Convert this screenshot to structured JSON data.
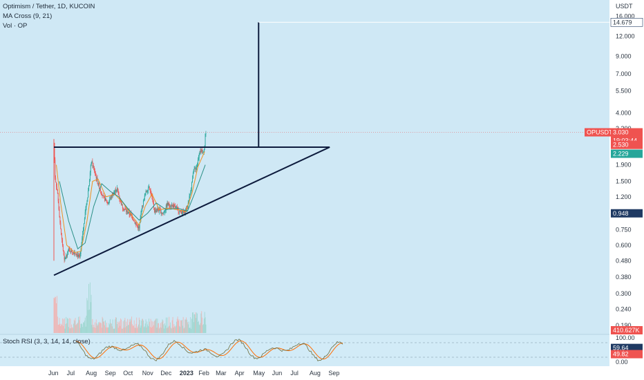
{
  "legend": {
    "title": "Optimism / Tether, 1D, KUCOIN",
    "ma": "MA Cross (9, 21)",
    "vol": "Vol · OP",
    "stoch": "Stoch RSI (3, 3, 14, 14, close)"
  },
  "colors": {
    "background": "#cfe8f5",
    "up": "#26a69a",
    "down": "#ef5350",
    "ma_fast": "#f0901e",
    "ma_slow": "#2a8f86",
    "trendline": "#0d1b3d",
    "stoch_k": "#2962ff",
    "stoch_d": "#ff6d00"
  },
  "badges": {
    "symbol": "OPUSDT",
    "price": "3.030",
    "countdown": "19:03:44",
    "level_2530": "2.530",
    "level_2229": "2.229",
    "level_0948": "0.948",
    "level_14679": "14.679",
    "volume": "410.627K",
    "stoch_k": "59.64",
    "stoch_d": "49.82"
  },
  "chart_data": [
    {
      "type": "candlestick",
      "title": "Optimism / Tether, 1D, KUCOIN",
      "yscale": "log",
      "ylabel": "USDT",
      "yticks": [
        "16.000",
        "12.000",
        "9.000",
        "7.000",
        "5.500",
        "4.000",
        "3.200",
        "2.530",
        "1.900",
        "1.500",
        "1.200",
        "0.948",
        "0.750",
        "0.600",
        "0.480",
        "0.380",
        "0.300",
        "0.240",
        "0.190"
      ],
      "yticks_values": [
        16,
        12,
        9,
        7,
        5.5,
        4,
        3.2,
        2.53,
        1.9,
        1.5,
        1.2,
        0.948,
        0.75,
        0.6,
        0.48,
        0.38,
        0.3,
        0.24,
        0.19
      ],
      "xticks": [
        "Jun",
        "Jul",
        "Aug",
        "Sep",
        "Oct",
        "Nov",
        "Dec",
        "2023",
        "Feb",
        "Mar",
        "Apr",
        "May",
        "Jun",
        "Jul",
        "Aug",
        "Sep"
      ],
      "price_path": [
        [
          "2022-06-01",
          2.6
        ],
        [
          "2022-06-03",
          1.6
        ],
        [
          "2022-06-07",
          1.25
        ],
        [
          "2022-06-12",
          0.75
        ],
        [
          "2022-06-18",
          0.48
        ],
        [
          "2022-06-25",
          0.56
        ],
        [
          "2022-07-01",
          0.55
        ],
        [
          "2022-07-08",
          0.53
        ],
        [
          "2022-07-13",
          0.5
        ],
        [
          "2022-07-15",
          0.55
        ],
        [
          "2022-07-22",
          0.98
        ],
        [
          "2022-07-26",
          1.2
        ],
        [
          "2022-08-01",
          2.0
        ],
        [
          "2022-08-06",
          1.75
        ],
        [
          "2022-08-12",
          1.45
        ],
        [
          "2022-08-20",
          1.2
        ],
        [
          "2022-08-28",
          1.1
        ],
        [
          "2022-09-05",
          1.25
        ],
        [
          "2022-09-12",
          1.35
        ],
        [
          "2022-09-20",
          1.05
        ],
        [
          "2022-09-28",
          0.97
        ],
        [
          "2022-10-05",
          0.93
        ],
        [
          "2022-10-12",
          0.82
        ],
        [
          "2022-10-18",
          0.76
        ],
        [
          "2022-10-22",
          1.0
        ],
        [
          "2022-10-28",
          1.25
        ],
        [
          "2022-11-03",
          1.4
        ],
        [
          "2022-11-08",
          1.2
        ],
        [
          "2022-11-12",
          0.98
        ],
        [
          "2022-11-18",
          1.0
        ],
        [
          "2022-11-26",
          0.94
        ],
        [
          "2022-12-03",
          1.08
        ],
        [
          "2022-12-10",
          1.06
        ],
        [
          "2022-12-18",
          1.02
        ],
        [
          "2022-12-24",
          0.97
        ],
        [
          "2022-12-30",
          0.95
        ],
        [
          "2023-01-05",
          1.05
        ],
        [
          "2023-01-10",
          1.3
        ],
        [
          "2023-01-15",
          1.75
        ],
        [
          "2023-01-20",
          1.85
        ],
        [
          "2023-01-25",
          2.35
        ],
        [
          "2023-01-30",
          2.25
        ],
        [
          "2023-02-02",
          2.5
        ],
        [
          "2023-02-03",
          2.95
        ],
        [
          "2023-02-04",
          3.03
        ]
      ],
      "ma_fast_path": [
        [
          "2022-06-05",
          1.9
        ],
        [
          "2022-06-12",
          1.1
        ],
        [
          "2022-06-22",
          0.6
        ],
        [
          "2022-07-05",
          0.54
        ],
        [
          "2022-07-15",
          0.55
        ],
        [
          "2022-07-25",
          0.85
        ],
        [
          "2022-08-03",
          1.5
        ],
        [
          "2022-08-12",
          1.55
        ],
        [
          "2022-08-25",
          1.2
        ],
        [
          "2022-09-08",
          1.25
        ],
        [
          "2022-09-22",
          1.1
        ],
        [
          "2022-10-08",
          0.9
        ],
        [
          "2022-10-18",
          0.8
        ],
        [
          "2022-10-28",
          1.05
        ],
        [
          "2022-11-08",
          1.25
        ],
        [
          "2022-11-20",
          1.0
        ],
        [
          "2022-12-05",
          1.02
        ],
        [
          "2022-12-20",
          1.0
        ],
        [
          "2023-01-02",
          0.97
        ],
        [
          "2023-01-12",
          1.25
        ],
        [
          "2023-01-22",
          1.85
        ],
        [
          "2023-02-02",
          2.3
        ]
      ],
      "ma_slow_path": [
        [
          "2022-06-10",
          1.5
        ],
        [
          "2022-06-25",
          0.85
        ],
        [
          "2022-07-10",
          0.57
        ],
        [
          "2022-07-22",
          0.62
        ],
        [
          "2022-08-05",
          1.05
        ],
        [
          "2022-08-18",
          1.45
        ],
        [
          "2022-09-01",
          1.3
        ],
        [
          "2022-09-15",
          1.2
        ],
        [
          "2022-10-01",
          1.0
        ],
        [
          "2022-10-18",
          0.86
        ],
        [
          "2022-11-01",
          0.95
        ],
        [
          "2022-11-15",
          1.1
        ],
        [
          "2022-12-01",
          1.0
        ],
        [
          "2022-12-20",
          1.02
        ],
        [
          "2023-01-05",
          0.98
        ],
        [
          "2023-01-18",
          1.3
        ],
        [
          "2023-02-03",
          1.9
        ]
      ],
      "triangle": {
        "upper": [
          [
            "2022-06-01",
            2.45
          ],
          [
            "2023-08-25",
            2.45
          ]
        ],
        "lower": [
          [
            "2022-06-01",
            0.39
          ],
          [
            "2023-08-25",
            2.45
          ]
        ],
        "target_vertical": [
          [
            "2023-05-01",
            2.45
          ],
          [
            "2023-05-01",
            14.679
          ]
        ],
        "target_level": 14.679
      }
    },
    {
      "type": "bar",
      "title": "Vol · OP",
      "last_value": "410.627K"
    },
    {
      "type": "line",
      "title": "Stoch RSI (3, 3, 14, 14, close)",
      "ylim": [
        0,
        100
      ],
      "yticks": [
        "100.00",
        "0.00"
      ],
      "bands": [
        80,
        20
      ],
      "k_last": 59.64,
      "d_last": 49.82
    }
  ]
}
